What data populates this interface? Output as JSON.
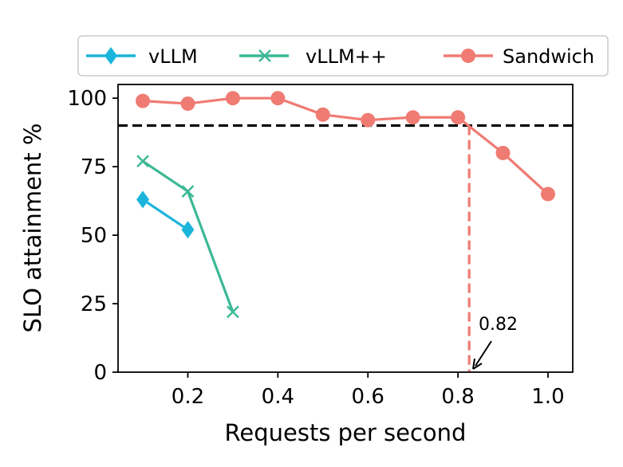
{
  "chart_data": {
    "type": "line",
    "title": "",
    "xlabel": "Requests per second",
    "ylabel": "SLO attainment %",
    "xlim": [
      0.045,
      1.055
    ],
    "ylim": [
      0,
      105
    ],
    "xticks": [
      0.2,
      0.4,
      0.6,
      0.8,
      1.0
    ],
    "xtick_labels": [
      "0.2",
      "0.4",
      "0.6",
      "0.8",
      "1.0"
    ],
    "yticks": [
      0,
      25,
      50,
      75,
      100
    ],
    "ytick_labels": [
      "0",
      "25",
      "50",
      "75",
      "100"
    ],
    "legend_position": "top",
    "series": [
      {
        "name": "vLLM",
        "color": "#1bb5db",
        "marker": "diamond",
        "x": [
          0.1,
          0.2
        ],
        "y": [
          63,
          52
        ]
      },
      {
        "name": "vLLM++",
        "color": "#3cb895",
        "marker": "x",
        "x": [
          0.1,
          0.2,
          0.3
        ],
        "y": [
          77,
          66,
          22
        ]
      },
      {
        "name": "Sandwich",
        "color": "#ef7b72",
        "marker": "circle",
        "x": [
          0.1,
          0.2,
          0.3,
          0.4,
          0.5,
          0.6,
          0.7,
          0.8,
          0.9,
          1.0
        ],
        "y": [
          99,
          98,
          100,
          100,
          94,
          92,
          93,
          93,
          80,
          65
        ]
      }
    ],
    "threshold": {
      "y": 90,
      "color": "#000000",
      "style": "dashed"
    },
    "crossover": {
      "x": 0.825,
      "label": "0.82",
      "color": "#ef7b72",
      "style": "dashed"
    }
  }
}
